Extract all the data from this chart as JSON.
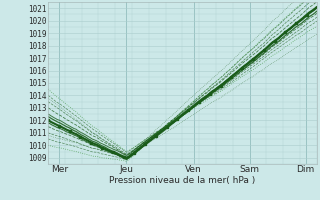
{
  "xlabel": "Pression niveau de la mer( hPa )",
  "ylim": [
    1008.5,
    1021.5
  ],
  "yticks": [
    1009,
    1010,
    1011,
    1012,
    1013,
    1014,
    1015,
    1016,
    1017,
    1018,
    1019,
    1020,
    1021
  ],
  "xlim": [
    0,
    96
  ],
  "xtick_positions": [
    4,
    28,
    52,
    72,
    92
  ],
  "xtick_labels": [
    "Mer",
    "Jeu",
    "Ven",
    "Sam",
    "Dim"
  ],
  "vline_positions": [
    4,
    28,
    52,
    72,
    92
  ],
  "bg_color": "#cce8e8",
  "grid_color": "#aacccc",
  "line_dark": "#1a5c1a",
  "line_mid": "#2d8c2d",
  "xlabel_fontsize": 6.5,
  "ytick_fontsize": 5.5,
  "xtick_fontsize": 6.5
}
